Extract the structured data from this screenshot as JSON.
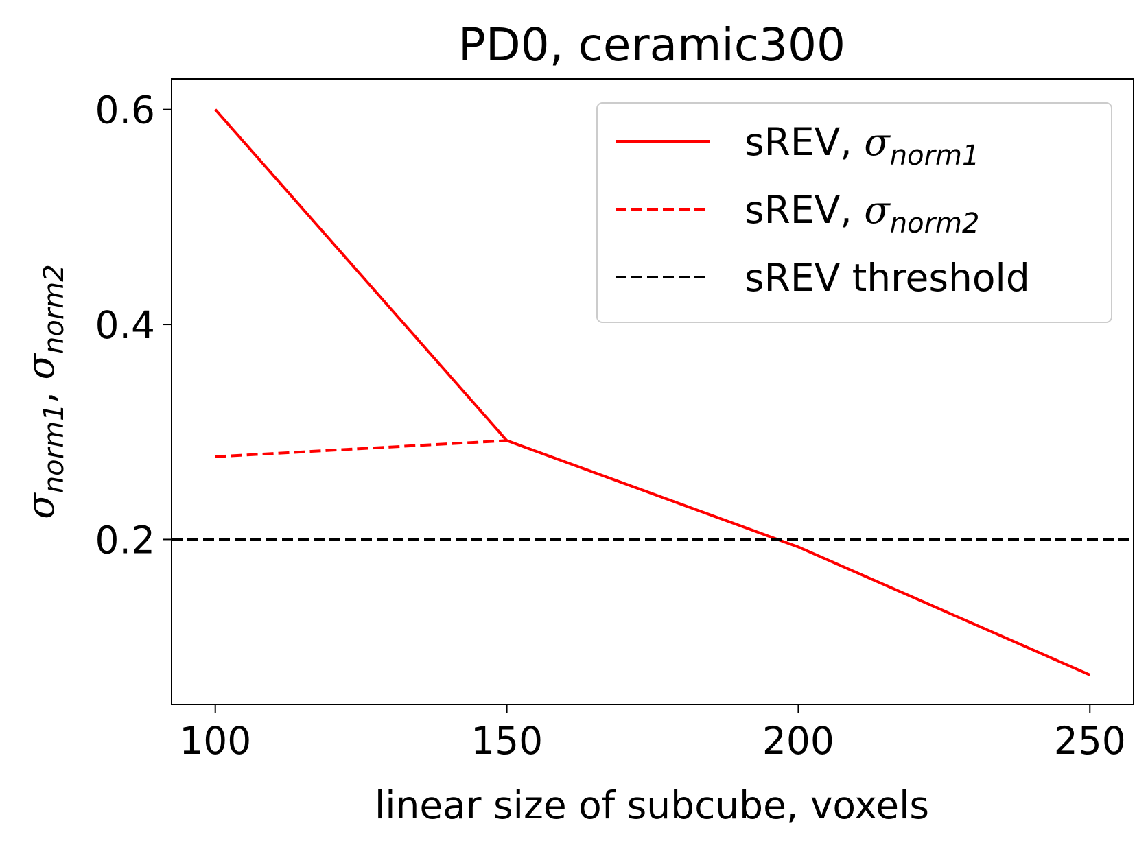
{
  "chart_data": {
    "type": "line",
    "title": "PD0, ceramic300",
    "xlabel": "linear size of subcube, voxels",
    "ylabel": {
      "sym1": "σ",
      "sub1": "norm1",
      "sep": ", ",
      "sym2": "σ",
      "sub2": "norm2"
    },
    "xlim": [
      92.5,
      257.5
    ],
    "ylim": [
      0.0465,
      0.6285
    ],
    "xticks": [
      100,
      150,
      200,
      250
    ],
    "yticks": [
      0.2,
      0.4,
      0.6
    ],
    "ytick_labels": [
      "0.2",
      "0.4",
      "0.6"
    ],
    "grid": false,
    "legend_position": "upper-right",
    "series": [
      {
        "legend_base": "sREV, ",
        "legend_sym": "σ",
        "legend_sub": "norm1",
        "color": "#ff0000",
        "dash": "solid",
        "x": [
          100,
          150,
          200,
          250
        ],
        "y": [
          0.6,
          0.292,
          0.193,
          0.074
        ]
      },
      {
        "legend_base": "sREV, ",
        "legend_sym": "σ",
        "legend_sub": "norm2",
        "color": "#ff0000",
        "dash": "dashed",
        "x": [
          100,
          150
        ],
        "y": [
          0.277,
          0.292
        ]
      },
      {
        "legend_base": "sREV threshold",
        "color": "#000000",
        "dash": "dashed",
        "type": "hline",
        "y": [
          0.2
        ]
      }
    ]
  }
}
